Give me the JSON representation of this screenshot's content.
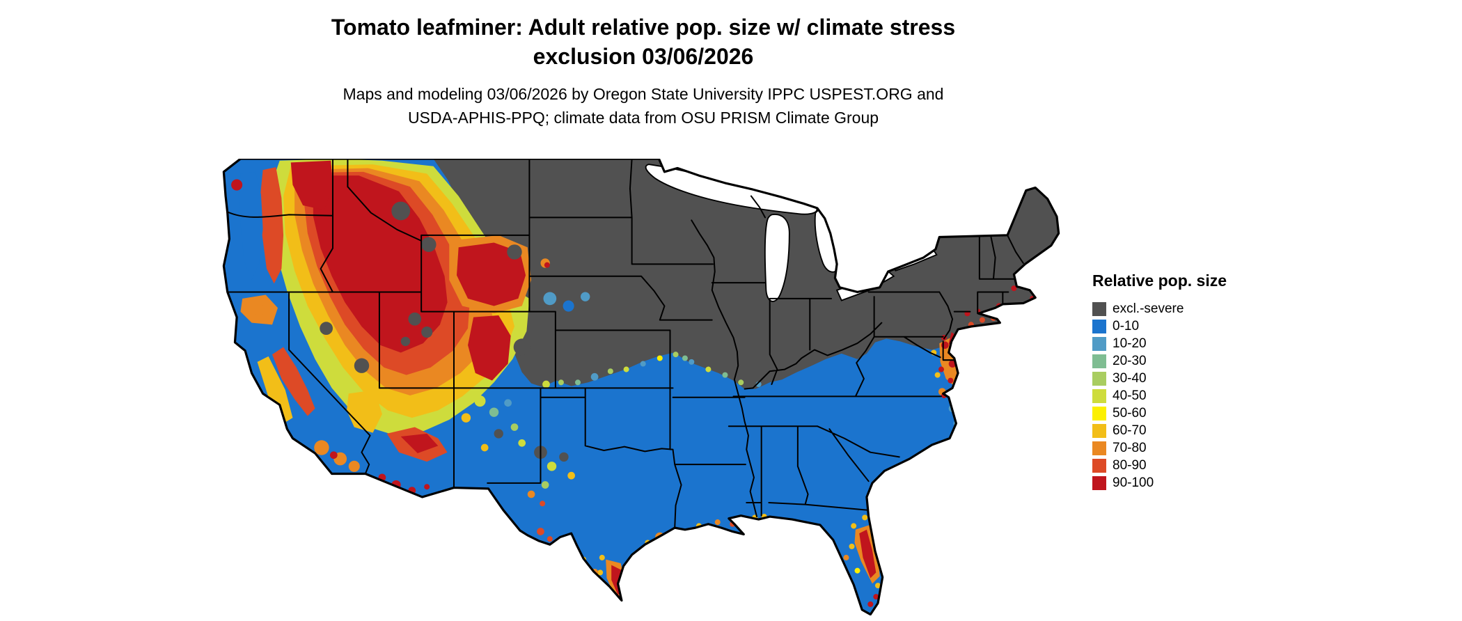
{
  "header": {
    "title_line1": "Tomato leafminer: Adult relative pop. size w/ climate stress",
    "title_line2": "exclusion 03/06/2026",
    "subtitle_line1": "Maps and modeling 03/06/2026 by Oregon State University IPPC USPEST.ORG and",
    "subtitle_line2": "USDA-APHIS-PPQ; climate data from OSU PRISM Climate Group"
  },
  "legend": {
    "title": "Relative pop. size",
    "items": [
      {
        "label": "excl.-severe",
        "color": "#515151"
      },
      {
        "label": "0-10",
        "color": "#1B74CE"
      },
      {
        "label": "10-20",
        "color": "#509BC6"
      },
      {
        "label": "20-30",
        "color": "#7FBD92"
      },
      {
        "label": "30-40",
        "color": "#A9CD60"
      },
      {
        "label": "40-50",
        "color": "#CEDC3C"
      },
      {
        "label": "50-60",
        "color": "#FCF000"
      },
      {
        "label": "60-70",
        "color": "#F2BE18"
      },
      {
        "label": "70-80",
        "color": "#EA8822"
      },
      {
        "label": "80-90",
        "color": "#DD4A26"
      },
      {
        "label": "90-100",
        "color": "#C0151D"
      }
    ]
  },
  "map": {
    "outline_color": "#000000",
    "water_color": "#FFFFFF"
  }
}
